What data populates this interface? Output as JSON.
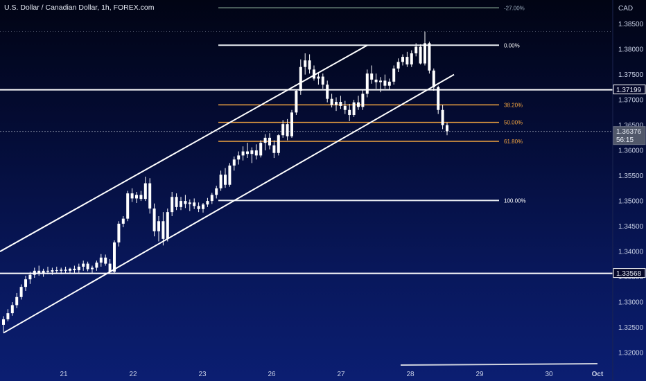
{
  "title": "U.S. Dollar / Canadian Dollar, 1h, FOREX.com",
  "colors": {
    "candle": "#ffffff",
    "fib_main": "#e9edf2",
    "fib_golden": "#f0a340",
    "fib_ext": "#9fc3a9",
    "level_line": "#ffffff",
    "axis_text": "#c9d1e6"
  },
  "chart_data": {
    "type": "candlestick",
    "symbol": "USDCAD",
    "timeframe": "1h",
    "currency_label": "CAD",
    "ylim": [
      1.3185,
      1.3892
    ],
    "y_ticks": [
      "1.32000",
      "1.32500",
      "1.33000",
      "1.33500",
      "1.34000",
      "1.34500",
      "1.35000",
      "1.35500",
      "1.36000",
      "1.36500",
      "1.37000",
      "1.37500",
      "1.38000",
      "1.38500"
    ],
    "x_ticks": [
      "21",
      "22",
      "23",
      "26",
      "27",
      "28",
      "29",
      "30",
      "Oct"
    ],
    "price_badges": [
      {
        "label": "1.37199",
        "value": 1.37199,
        "style": "dark"
      },
      {
        "label": "1.36376",
        "value": 1.36376,
        "style": "gray",
        "countdown": "56:15"
      },
      {
        "label": "1.33568",
        "value": 1.33568,
        "style": "dark"
      }
    ],
    "horizontal_levels": [
      1.37199,
      1.33568
    ],
    "fibonacci": {
      "levels": [
        {
          "label": "-27.00%",
          "value": 1.3882
        },
        {
          "label": "0.00%",
          "value": 1.3808
        },
        {
          "label": "38.20%",
          "value": 1.369
        },
        {
          "label": "50.00%",
          "value": 1.36555
        },
        {
          "label": "61.80%",
          "value": 1.3618
        },
        {
          "label": "100.00%",
          "value": 1.3501
        }
      ]
    },
    "channel": {
      "upper": [
        {
          "x": 0,
          "y": 1.34
        },
        {
          "x": 149.6,
          "y": 1.3808
        }
      ],
      "lower": [
        {
          "x": 0,
          "y": 1.325
        },
        {
          "x": 188.0,
          "y": 1.375
        }
      ]
    },
    "candles_ohlc": [
      [
        1.3255,
        1.3272,
        1.324,
        1.3266
      ],
      [
        1.3266,
        1.3286,
        1.3262,
        1.3278
      ],
      [
        1.3278,
        1.33,
        1.3273,
        1.3294
      ],
      [
        1.3294,
        1.3318,
        1.3288,
        1.331
      ],
      [
        1.331,
        1.3335,
        1.3305,
        1.333
      ],
      [
        1.333,
        1.3352,
        1.3322,
        1.3345
      ],
      [
        1.3345,
        1.336,
        1.3336,
        1.3354
      ],
      [
        1.3354,
        1.3368,
        1.3348,
        1.3362
      ],
      [
        1.3362,
        1.3372,
        1.3352,
        1.3357
      ],
      [
        1.3357,
        1.3366,
        1.335,
        1.3362
      ],
      [
        1.3362,
        1.337,
        1.3355,
        1.336
      ],
      [
        1.336,
        1.3368,
        1.3354,
        1.3363
      ],
      [
        1.3363,
        1.337,
        1.3356,
        1.3362
      ],
      [
        1.3362,
        1.3368,
        1.3355,
        1.3364
      ],
      [
        1.3364,
        1.337,
        1.3357,
        1.3362
      ],
      [
        1.3362,
        1.3368,
        1.3356,
        1.3366
      ],
      [
        1.3366,
        1.3372,
        1.3358,
        1.3363
      ],
      [
        1.3363,
        1.3376,
        1.3358,
        1.337
      ],
      [
        1.337,
        1.3382,
        1.3362,
        1.3376
      ],
      [
        1.3376,
        1.338,
        1.3361,
        1.3365
      ],
      [
        1.3365,
        1.3372,
        1.3358,
        1.3368
      ],
      [
        1.3368,
        1.3382,
        1.3362,
        1.3378
      ],
      [
        1.3378,
        1.3395,
        1.337,
        1.3388
      ],
      [
        1.3388,
        1.3394,
        1.3372,
        1.3376
      ],
      [
        1.3376,
        1.3385,
        1.3356,
        1.336
      ],
      [
        1.336,
        1.3422,
        1.3356,
        1.3418
      ],
      [
        1.3418,
        1.346,
        1.341,
        1.3455
      ],
      [
        1.3455,
        1.347,
        1.3448,
        1.3465
      ],
      [
        1.3465,
        1.352,
        1.346,
        1.3515
      ],
      [
        1.3515,
        1.3525,
        1.3498,
        1.3505
      ],
      [
        1.3505,
        1.3518,
        1.3496,
        1.3512
      ],
      [
        1.3512,
        1.352,
        1.35,
        1.3504
      ],
      [
        1.3504,
        1.3548,
        1.35,
        1.3535
      ],
      [
        1.3535,
        1.3545,
        1.3475,
        1.3485
      ],
      [
        1.3485,
        1.3495,
        1.343,
        1.344
      ],
      [
        1.344,
        1.347,
        1.342,
        1.346
      ],
      [
        1.346,
        1.3478,
        1.3412,
        1.3425
      ],
      [
        1.3425,
        1.3485,
        1.342,
        1.3478
      ],
      [
        1.3478,
        1.3518,
        1.347,
        1.3508
      ],
      [
        1.3508,
        1.3515,
        1.3482,
        1.3488
      ],
      [
        1.3488,
        1.3508,
        1.3482,
        1.35
      ],
      [
        1.35,
        1.3512,
        1.3486,
        1.3494
      ],
      [
        1.3494,
        1.3503,
        1.348,
        1.3497
      ],
      [
        1.3497,
        1.3505,
        1.3484,
        1.349
      ],
      [
        1.349,
        1.3497,
        1.3478,
        1.3484
      ],
      [
        1.3484,
        1.3496,
        1.3477,
        1.3493
      ],
      [
        1.3493,
        1.3506,
        1.3488,
        1.35
      ],
      [
        1.35,
        1.3516,
        1.3494,
        1.3512
      ],
      [
        1.3512,
        1.353,
        1.3505,
        1.3525
      ],
      [
        1.3525,
        1.356,
        1.352,
        1.3552
      ],
      [
        1.3552,
        1.3565,
        1.3526,
        1.3532
      ],
      [
        1.3532,
        1.3575,
        1.3528,
        1.357
      ],
      [
        1.357,
        1.3588,
        1.356,
        1.3582
      ],
      [
        1.3582,
        1.3598,
        1.3572,
        1.359
      ],
      [
        1.359,
        1.3608,
        1.358,
        1.3598
      ],
      [
        1.3598,
        1.3615,
        1.3585,
        1.3593
      ],
      [
        1.3593,
        1.3606,
        1.3575,
        1.36
      ],
      [
        1.36,
        1.3612,
        1.3582,
        1.359
      ],
      [
        1.359,
        1.362,
        1.3586,
        1.3615
      ],
      [
        1.3615,
        1.3632,
        1.36,
        1.3625
      ],
      [
        1.3625,
        1.3634,
        1.3602,
        1.361
      ],
      [
        1.361,
        1.362,
        1.3585,
        1.3595
      ],
      [
        1.3595,
        1.3632,
        1.359,
        1.363
      ],
      [
        1.363,
        1.366,
        1.3625,
        1.3652
      ],
      [
        1.3652,
        1.3662,
        1.362,
        1.3628
      ],
      [
        1.3628,
        1.368,
        1.3625,
        1.3675
      ],
      [
        1.3675,
        1.372,
        1.367,
        1.3718
      ],
      [
        1.3718,
        1.378,
        1.371,
        1.3765
      ],
      [
        1.3765,
        1.3792,
        1.375,
        1.3778
      ],
      [
        1.3778,
        1.379,
        1.3752,
        1.376
      ],
      [
        1.376,
        1.3768,
        1.3738,
        1.3742
      ],
      [
        1.3742,
        1.3755,
        1.373,
        1.3746
      ],
      [
        1.3746,
        1.3752,
        1.3722,
        1.373
      ],
      [
        1.373,
        1.3738,
        1.3695,
        1.3702
      ],
      [
        1.3702,
        1.3712,
        1.3685,
        1.369
      ],
      [
        1.369,
        1.3705,
        1.3678,
        1.3696
      ],
      [
        1.3696,
        1.3708,
        1.3682,
        1.3688
      ],
      [
        1.3688,
        1.3698,
        1.3672,
        1.368
      ],
      [
        1.368,
        1.3692,
        1.3658,
        1.367
      ],
      [
        1.367,
        1.37,
        1.3666,
        1.3695
      ],
      [
        1.3695,
        1.3708,
        1.368,
        1.3686
      ],
      [
        1.3686,
        1.372,
        1.368,
        1.3712
      ],
      [
        1.3712,
        1.376,
        1.3705,
        1.3752
      ],
      [
        1.3752,
        1.3768,
        1.3732,
        1.374
      ],
      [
        1.374,
        1.3752,
        1.3722,
        1.3735
      ],
      [
        1.3735,
        1.3745,
        1.3715,
        1.3738
      ],
      [
        1.3738,
        1.375,
        1.3722,
        1.3728
      ],
      [
        1.3728,
        1.3742,
        1.372,
        1.3736
      ],
      [
        1.3736,
        1.3768,
        1.373,
        1.3762
      ],
      [
        1.3762,
        1.3782,
        1.3755,
        1.3775
      ],
      [
        1.3775,
        1.379,
        1.3768,
        1.3785
      ],
      [
        1.3785,
        1.3795,
        1.3765,
        1.377
      ],
      [
        1.377,
        1.3798,
        1.3765,
        1.3792
      ],
      [
        1.3792,
        1.3812,
        1.3786,
        1.3805
      ],
      [
        1.3805,
        1.381,
        1.377,
        1.3772
      ],
      [
        1.3772,
        1.3835,
        1.3768,
        1.3812
      ],
      [
        1.3812,
        1.3815,
        1.3752,
        1.3758
      ],
      [
        1.3758,
        1.3762,
        1.3718,
        1.3725
      ],
      [
        1.3725,
        1.3728,
        1.3672,
        1.368
      ],
      [
        1.368,
        1.369,
        1.3642,
        1.365
      ],
      [
        1.365,
        1.3655,
        1.363,
        1.3638
      ]
    ]
  }
}
